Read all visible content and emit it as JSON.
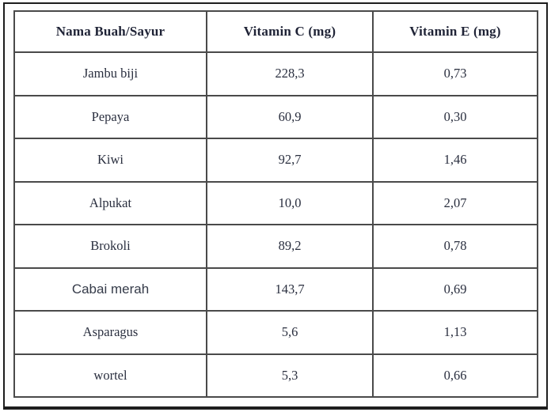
{
  "table": {
    "headers": [
      "Nama Buah/Sayur",
      "Vitamin C (mg)",
      "Vitamin E (mg)"
    ],
    "rows": [
      {
        "name": "Jambu biji",
        "vitamin_c": "228,3",
        "vitamin_e": "0,73"
      },
      {
        "name": "Pepaya",
        "vitamin_c": "60,9",
        "vitamin_e": "0,30"
      },
      {
        "name": "Kiwi",
        "vitamin_c": "92,7",
        "vitamin_e": "1,46"
      },
      {
        "name": "Alpukat",
        "vitamin_c": "10,0",
        "vitamin_e": "2,07"
      },
      {
        "name": "Brokoli",
        "vitamin_c": "89,2",
        "vitamin_e": "0,78"
      },
      {
        "name": "Cabai merah",
        "vitamin_c": "143,7",
        "vitamin_e": "0,69"
      },
      {
        "name": "Asparagus",
        "vitamin_c": "5,6",
        "vitamin_e": "1,13"
      },
      {
        "name": "wortel",
        "vitamin_c": "5,3",
        "vitamin_e": "0,66"
      }
    ]
  },
  "table_data_numeric": {
    "type": "table",
    "columns": [
      "Nama Buah/Sayur",
      "Vitamin C (mg)",
      "Vitamin E (mg)"
    ],
    "categories": [
      "Jambu biji",
      "Pepaya",
      "Kiwi",
      "Alpukat",
      "Brokoli",
      "Cabai merah",
      "Asparagus",
      "wortel"
    ],
    "series": [
      {
        "name": "Vitamin C (mg)",
        "values": [
          228.3,
          60.9,
          92.7,
          10.0,
          89.2,
          143.7,
          5.6,
          5.3
        ]
      },
      {
        "name": "Vitamin E (mg)",
        "values": [
          0.73,
          0.3,
          1.46,
          2.07,
          0.78,
          0.69,
          1.13,
          0.66
        ]
      }
    ],
    "number_format": "comma-decimal"
  },
  "colors": {
    "text": "#2a2f3f",
    "header_text": "#1f2336",
    "table_border": "#4a4a4a",
    "frame_border": "#1c1c1c",
    "background": "#ffffff"
  }
}
